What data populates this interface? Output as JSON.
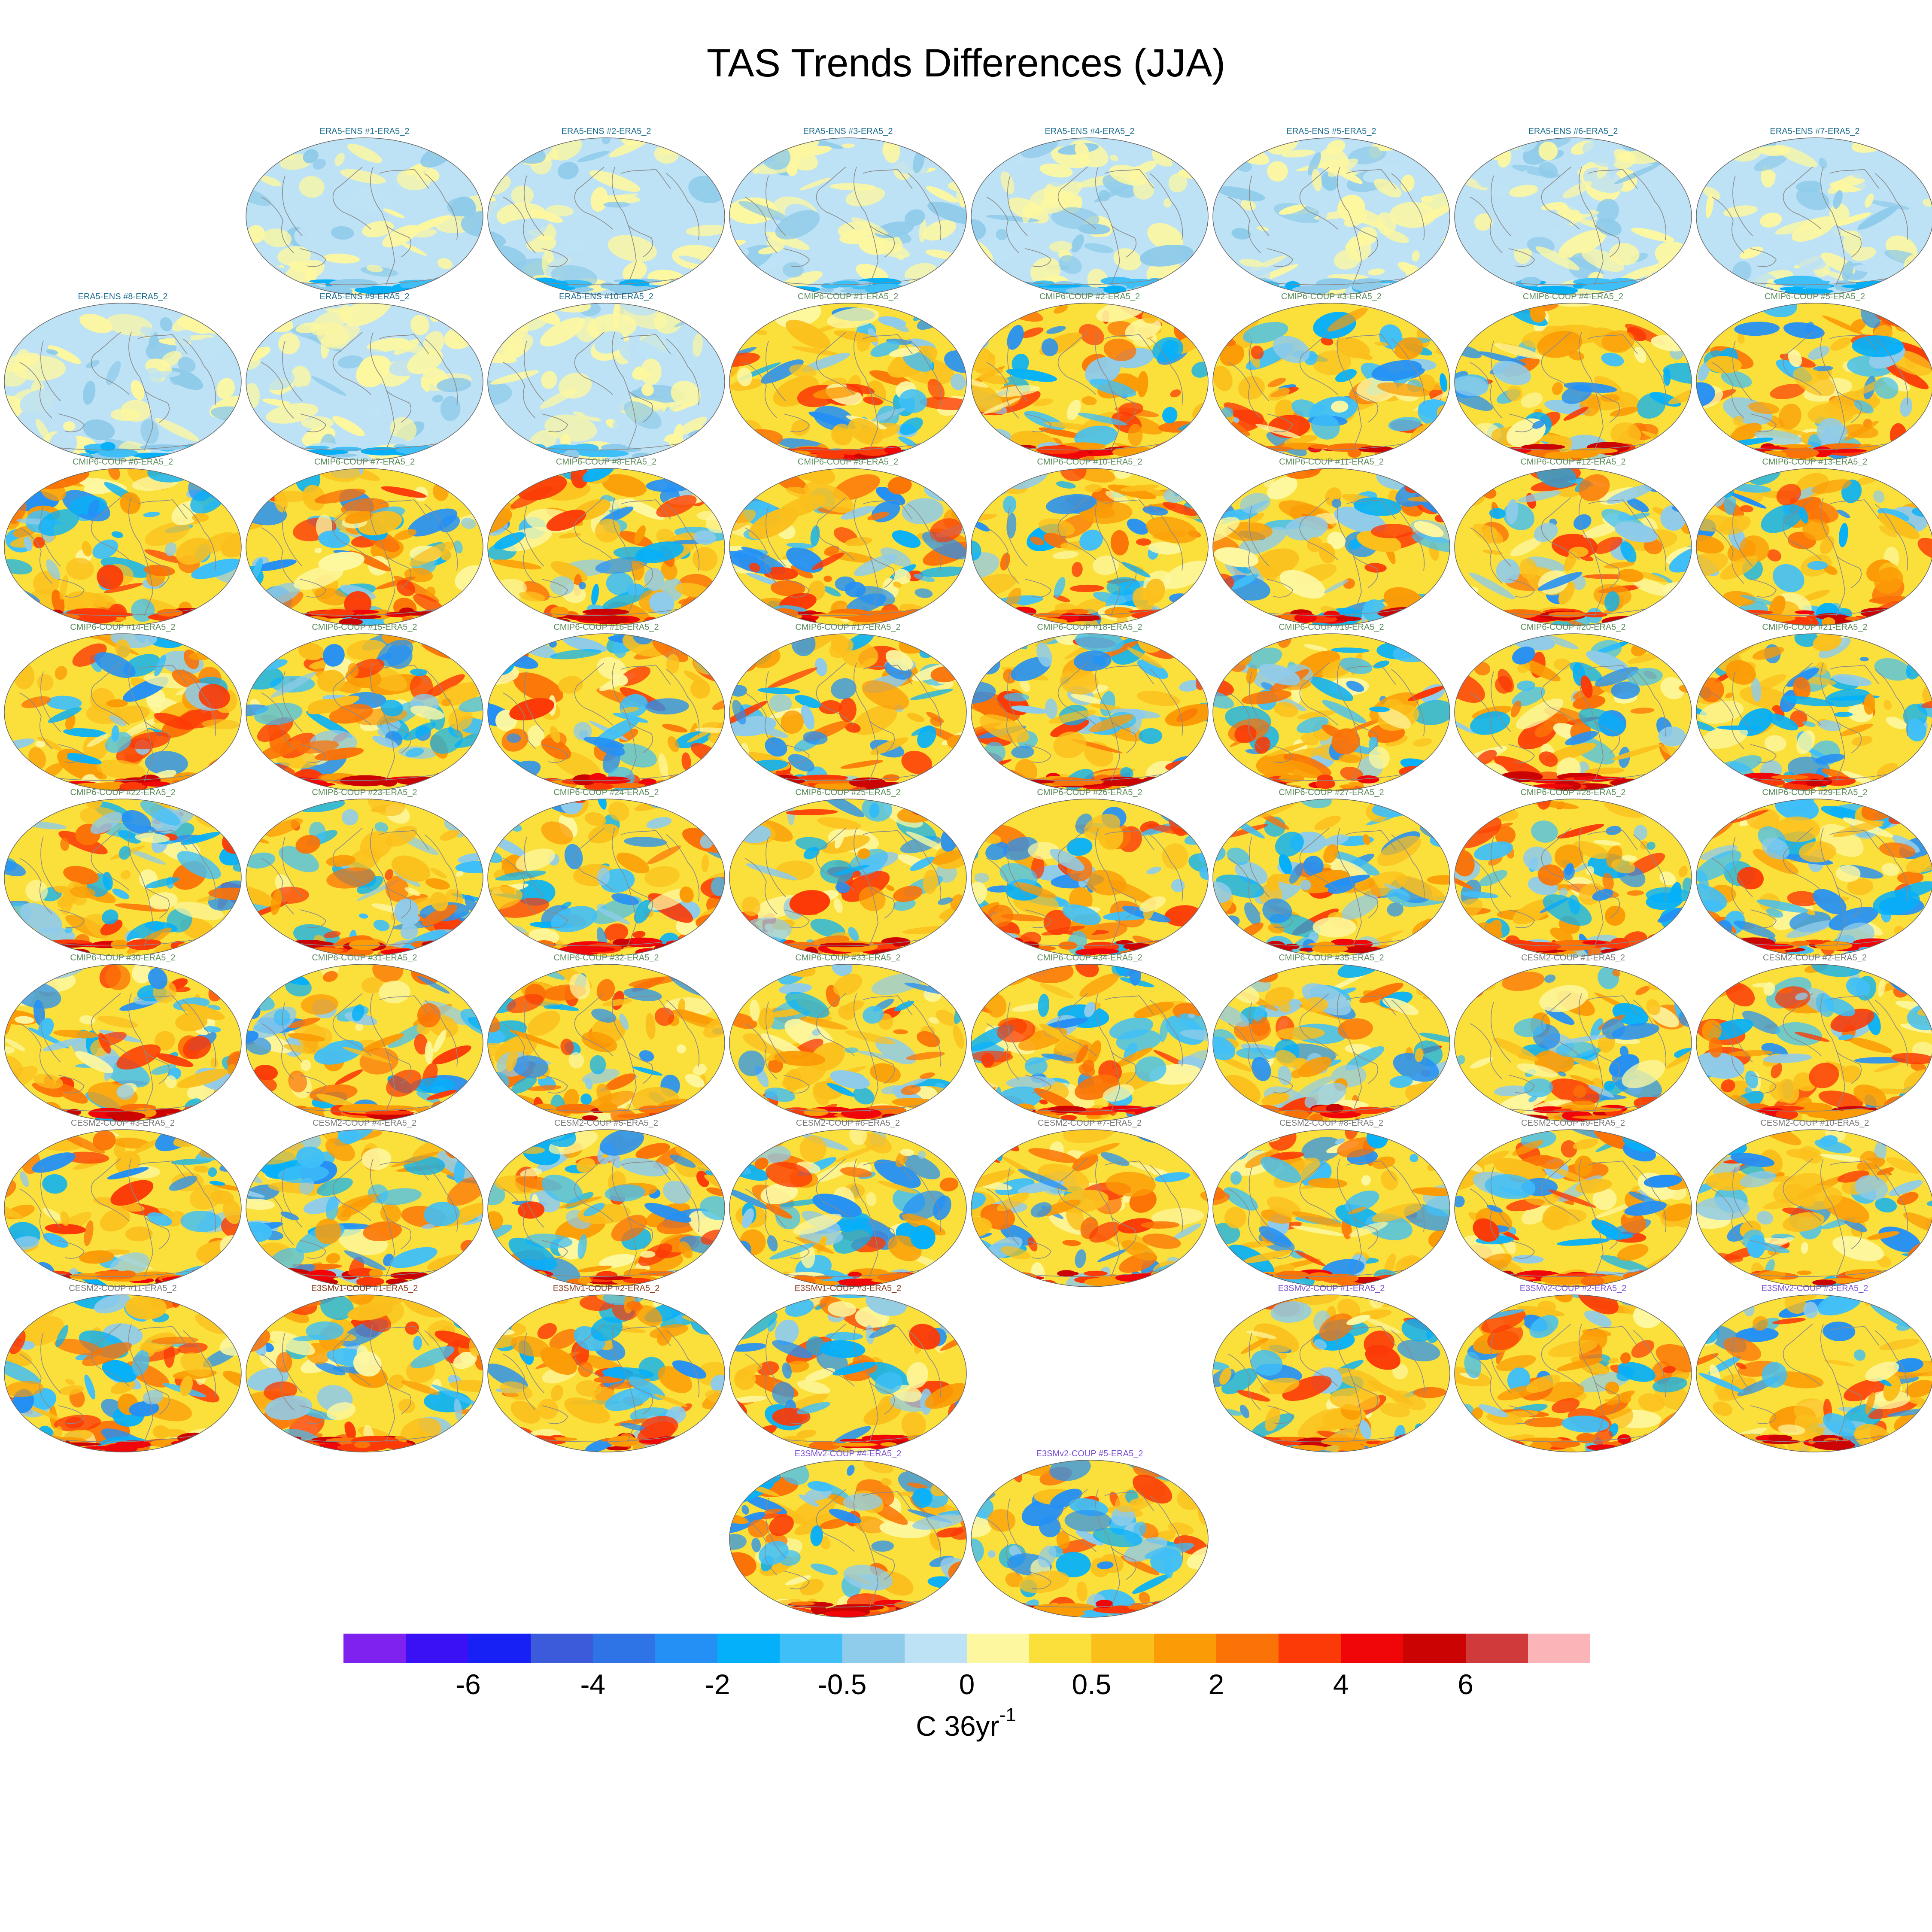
{
  "chart_data": {
    "type": "heatmap",
    "title": "TAS Trends Differences (JJA)",
    "units_base": "C 36yr",
    "units_exponent": "-1",
    "colorbar": {
      "colors": [
        "#7f22f0",
        "#3a11f5",
        "#1721f5",
        "#3b5bdb",
        "#2f74e6",
        "#2490f5",
        "#05b0fa",
        "#3fbff8",
        "#8fcbea",
        "#bde2f5",
        "#fdf7a0",
        "#fbe03c",
        "#fbbf1c",
        "#fb9b05",
        "#fb7206",
        "#fb3a07",
        "#f00508",
        "#cc0303",
        "#d03a3a",
        "#fbb5b8"
      ],
      "tick_labels": [
        "-6",
        "-4",
        "-2",
        "-0.5",
        "0",
        "0.5",
        "2",
        "4",
        "6"
      ]
    },
    "groups": {
      "ERA5-ENS": {
        "color": "#1a6b8f"
      },
      "CMIP6-COUP": {
        "color": "#5b8c5a"
      },
      "CESM2-COUP": {
        "color": "#7a7a7a"
      },
      "E3SMv1-COUP": {
        "color": "#8b3a1a"
      },
      "E3SMv2-COUP": {
        "color": "#7b4fd1"
      }
    },
    "rows": [
      [
        null,
        "ERA5-ENS  #1-ERA5_2",
        "ERA5-ENS  #2-ERA5_2",
        "ERA5-ENS  #3-ERA5_2",
        "ERA5-ENS  #4-ERA5_2",
        "ERA5-ENS  #5-ERA5_2",
        "ERA5-ENS  #6-ERA5_2",
        "ERA5-ENS  #7-ERA5_2"
      ],
      [
        "ERA5-ENS  #8-ERA5_2",
        "ERA5-ENS  #9-ERA5_2",
        "ERA5-ENS  #10-ERA5_2",
        "CMIP6-COUP  #1-ERA5_2",
        "CMIP6-COUP  #2-ERA5_2",
        "CMIP6-COUP  #3-ERA5_2",
        "CMIP6-COUP  #4-ERA5_2",
        "CMIP6-COUP  #5-ERA5_2"
      ],
      [
        "CMIP6-COUP  #6-ERA5_2",
        "CMIP6-COUP  #7-ERA5_2",
        "CMIP6-COUP  #8-ERA5_2",
        "CMIP6-COUP  #9-ERA5_2",
        "CMIP6-COUP  #10-ERA5_2",
        "CMIP6-COUP  #11-ERA5_2",
        "CMIP6-COUP  #12-ERA5_2",
        "CMIP6-COUP  #13-ERA5_2"
      ],
      [
        "CMIP6-COUP  #14-ERA5_2",
        "CMIP6-COUP  #15-ERA5_2",
        "CMIP6-COUP  #16-ERA5_2",
        "CMIP6-COUP  #17-ERA5_2",
        "CMIP6-COUP  #18-ERA5_2",
        "CMIP6-COUP  #19-ERA5_2",
        "CMIP6-COUP  #20-ERA5_2",
        "CMIP6-COUP  #21-ERA5_2"
      ],
      [
        "CMIP6-COUP  #22-ERA5_2",
        "CMIP6-COUP  #23-ERA5_2",
        "CMIP6-COUP  #24-ERA5_2",
        "CMIP6-COUP  #25-ERA5_2",
        "CMIP6-COUP  #26-ERA5_2",
        "CMIP6-COUP  #27-ERA5_2",
        "CMIP6-COUP  #28-ERA5_2",
        "CMIP6-COUP  #29-ERA5_2"
      ],
      [
        "CMIP6-COUP  #30-ERA5_2",
        "CMIP6-COUP  #31-ERA5_2",
        "CMIP6-COUP  #32-ERA5_2",
        "CMIP6-COUP  #33-ERA5_2",
        "CMIP6-COUP  #34-ERA5_2",
        "CMIP6-COUP  #35-ERA5_2",
        "CESM2-COUP  #1-ERA5_2",
        "CESM2-COUP  #2-ERA5_2"
      ],
      [
        "CESM2-COUP  #3-ERA5_2",
        "CESM2-COUP  #4-ERA5_2",
        "CESM2-COUP  #5-ERA5_2",
        "CESM2-COUP  #6-ERA5_2",
        "CESM2-COUP  #7-ERA5_2",
        "CESM2-COUP  #8-ERA5_2",
        "CESM2-COUP  #9-ERA5_2",
        "CESM2-COUP  #10-ERA5_2"
      ],
      [
        "CESM2-COUP  #11-ERA5_2",
        "E3SMv1-COUP #1-ERA5_2",
        "E3SMv1-COUP #2-ERA5_2",
        "E3SMv1-COUP #3-ERA5_2",
        null,
        "E3SMv2-COUP #1-ERA5_2",
        "E3SMv2-COUP #2-ERA5_2",
        "E3SMv2-COUP #3-ERA5_2"
      ],
      [
        null,
        null,
        null,
        "E3SMv2-COUP #4-ERA5_2",
        "E3SMv2-COUP #5-ERA5_2",
        null,
        null,
        null
      ]
    ]
  }
}
